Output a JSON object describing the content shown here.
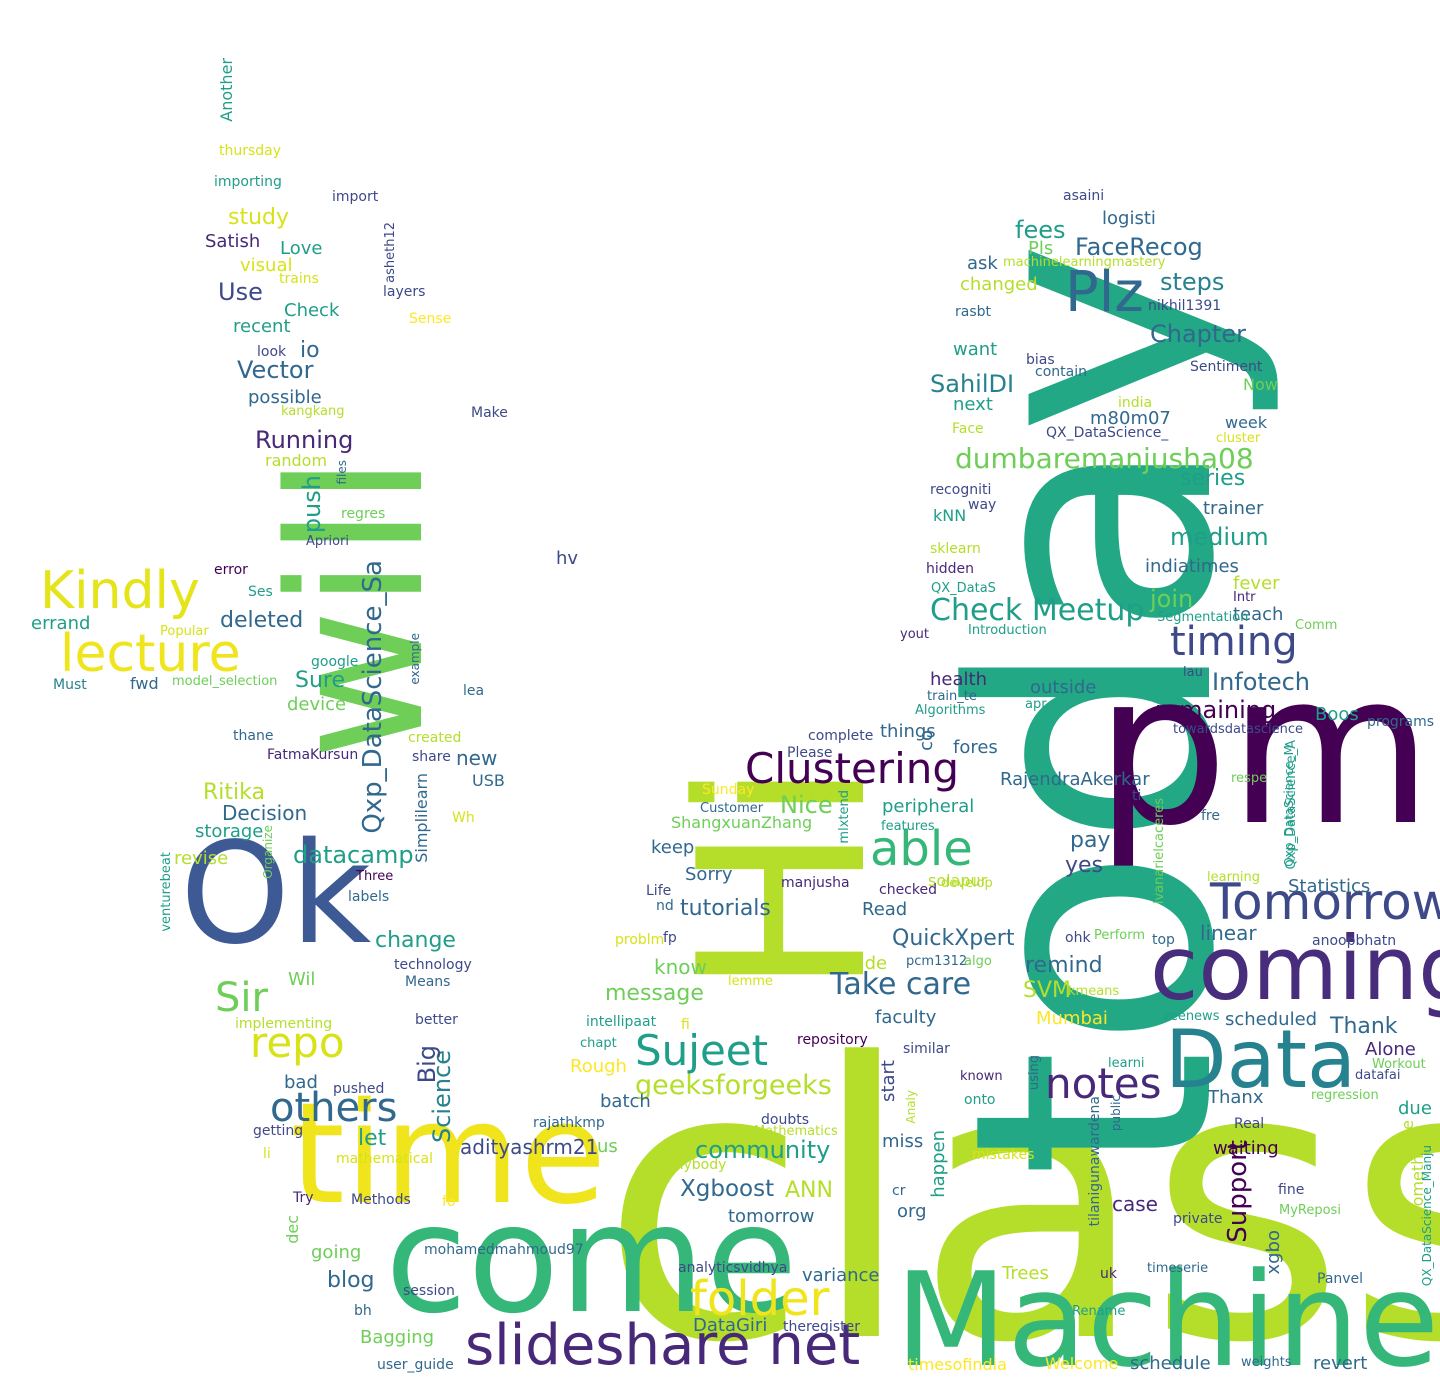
{
  "palette": {
    "c1": "#440154",
    "c2": "#482878",
    "c3": "#3e4989",
    "c4": "#31688e",
    "c5": "#26828e",
    "c6": "#1f9e89",
    "c7": "#35b779",
    "c8": "#6ece58",
    "c9": "#b5de2b",
    "c10": "#fde725"
  },
  "words": [
    {
      "text": "class",
      "color": "#b5de2b"
    },
    {
      "text": "today",
      "color": "#22a884"
    },
    {
      "text": "pm",
      "color": "#440154"
    },
    {
      "text": "come",
      "color": "#35b779"
    },
    {
      "text": "time",
      "color": "#f0e51c"
    },
    {
      "text": "Hi",
      "color": "#b5de2b"
    },
    {
      "text": "Machine",
      "color": "#35b779"
    },
    {
      "text": "will",
      "color": "#6ece58"
    },
    {
      "text": "Ok",
      "color": "#3e5a95"
    },
    {
      "text": "coming",
      "color": "#472d7b"
    },
    {
      "text": "Data",
      "color": "#26828e"
    },
    {
      "text": "slideshare net",
      "color": "#482878"
    },
    {
      "text": "Plz",
      "color": "#31688e"
    },
    {
      "text": "Tomorrow",
      "color": "#3e4989"
    },
    {
      "text": "able",
      "color": "#35b779"
    },
    {
      "text": "Kindly",
      "color": "#e5e419"
    },
    {
      "text": "lecture",
      "color": "#f0e51c"
    },
    {
      "text": "notes",
      "color": "#482878"
    },
    {
      "text": "Clustering",
      "color": "#440154"
    },
    {
      "text": "Sujeet",
      "color": "#1f9e89"
    },
    {
      "text": "others",
      "color": "#31688e"
    },
    {
      "text": "repo",
      "color": "#d8e219"
    },
    {
      "text": "folder",
      "color": "#f0e51c"
    },
    {
      "text": "timing",
      "color": "#3e4989"
    },
    {
      "text": "Sir",
      "color": "#6ece58"
    },
    {
      "text": "Check Meetup",
      "color": "#1f9e89"
    },
    {
      "text": "Take care",
      "color": "#31688e"
    },
    {
      "text": "dumbaremanjusha08",
      "color": "#6ece58"
    },
    {
      "text": "Qxp_DataScience_Sa",
      "color": "#31688e"
    },
    {
      "text": "geeksforgeeks",
      "color": "#b5de2b"
    },
    {
      "text": "Support",
      "color": "#440154"
    },
    {
      "text": "Xgboost",
      "color": "#31688e"
    },
    {
      "text": "SahilDI",
      "color": "#26828e"
    },
    {
      "text": "FaceRecog",
      "color": "#31688e"
    },
    {
      "text": "Chapter",
      "color": "#31688e"
    },
    {
      "text": "steps",
      "color": "#26828e"
    },
    {
      "text": "fees",
      "color": "#1f9e89"
    },
    {
      "text": "medium",
      "color": "#1f9e89"
    },
    {
      "text": "join",
      "color": "#6ece58"
    },
    {
      "text": "Infotech",
      "color": "#31688e"
    },
    {
      "text": "remaining",
      "color": "#440154"
    },
    {
      "text": "community",
      "color": "#1f9e89"
    },
    {
      "text": "Running",
      "color": "#482878"
    },
    {
      "text": "Vector",
      "color": "#31688e"
    },
    {
      "text": "push",
      "color": "#1f9e89"
    },
    {
      "text": "Science",
      "color": "#26828e"
    },
    {
      "text": "Big",
      "color": "#3e4989"
    },
    {
      "text": "datacamp",
      "color": "#1f9e89"
    },
    {
      "text": "Use",
      "color": "#3e4989"
    },
    {
      "text": "study",
      "color": "#d8e219"
    },
    {
      "text": "deleted",
      "color": "#31688e"
    },
    {
      "text": "tutorials",
      "color": "#31688e"
    },
    {
      "text": "Nice",
      "color": "#6ece58"
    },
    {
      "text": "QuickXpert",
      "color": "#31688e"
    },
    {
      "text": "change",
      "color": "#1f9e89"
    },
    {
      "text": "message",
      "color": "#6ece58"
    },
    {
      "text": "remind",
      "color": "#31688e"
    },
    {
      "text": "SVM",
      "color": "#b5de2b"
    },
    {
      "text": "ANN",
      "color": "#b5de2b"
    },
    {
      "text": "pay",
      "color": "#31688e"
    },
    {
      "text": "yes",
      "color": "#3e4989"
    },
    {
      "text": "linear",
      "color": "#31688e"
    },
    {
      "text": "series",
      "color": "#1f9e89"
    },
    {
      "text": "Thank",
      "color": "#31688e"
    },
    {
      "text": "Ritika",
      "color": "#b5de2b"
    },
    {
      "text": "Decision",
      "color": "#31688e"
    },
    {
      "text": "adityashrm21",
      "color": "#3e4989"
    },
    {
      "text": "blog",
      "color": "#31688e"
    },
    {
      "text": "let",
      "color": "#1f9e89"
    },
    {
      "text": "new",
      "color": "#31688e"
    },
    {
      "text": "Sure",
      "color": "#1f9e89"
    },
    {
      "text": "io",
      "color": "#31688e"
    },
    {
      "text": "fores",
      "color": "#31688e"
    },
    {
      "text": "peripheral",
      "color": "#1f9e89"
    },
    {
      "text": "RajendraAkerkar",
      "color": "#31688e"
    },
    {
      "text": "Statistics",
      "color": "#31688e"
    },
    {
      "text": "happen",
      "color": "#1f9e89"
    },
    {
      "text": "start",
      "color": "#3e4989"
    },
    {
      "text": "co",
      "color": "#31688e"
    },
    {
      "text": "faculty",
      "color": "#31688e"
    },
    {
      "text": "org",
      "color": "#31688e"
    },
    {
      "text": "case",
      "color": "#482878"
    },
    {
      "text": "waiting",
      "color": "#440154"
    },
    {
      "text": "late",
      "color": "#b5de2b"
    },
    {
      "text": "something",
      "color": "#b5de2b"
    },
    {
      "text": "xgbo",
      "color": "#31688e"
    },
    {
      "text": "Trees",
      "color": "#b5de2b"
    },
    {
      "text": "variance",
      "color": "#31688e"
    },
    {
      "text": "DataGiri",
      "color": "#31688e"
    },
    {
      "text": "tomorrow",
      "color": "#31688e"
    },
    {
      "text": "going",
      "color": "#6ece58"
    },
    {
      "text": "Bagging",
      "color": "#6ece58"
    },
    {
      "text": "know",
      "color": "#6ece58"
    },
    {
      "text": "keep",
      "color": "#31688e"
    },
    {
      "text": "Sorry",
      "color": "#31688e"
    },
    {
      "text": "Read",
      "color": "#31688e"
    },
    {
      "text": "Donifide",
      "color": "#b5de2b"
    },
    {
      "text": "Mumbai",
      "color": "#fde725"
    },
    {
      "text": "schedule",
      "color": "#31688e"
    },
    {
      "text": "revert",
      "color": "#31688e"
    },
    {
      "text": "Welcome",
      "color": "#fde725"
    },
    {
      "text": "timesofindia",
      "color": "#fde725"
    },
    {
      "text": "batch",
      "color": "#31688e"
    },
    {
      "text": "Rough",
      "color": "#fde725"
    },
    {
      "text": "us",
      "color": "#6ece58"
    },
    {
      "text": "miss",
      "color": "#31688e"
    },
    {
      "text": "health",
      "color": "#482878"
    },
    {
      "text": "outside",
      "color": "#31688e"
    },
    {
      "text": "things",
      "color": "#31688e"
    },
    {
      "text": "fever",
      "color": "#b5de2b"
    },
    {
      "text": "teach",
      "color": "#31688e"
    },
    {
      "text": "indiatimes",
      "color": "#31688e"
    },
    {
      "text": "trainer",
      "color": "#31688e"
    },
    {
      "text": "Boos",
      "color": "#1f9e89"
    },
    {
      "text": "Thanx",
      "color": "#31688e"
    },
    {
      "text": "due",
      "color": "#1f9e89"
    },
    {
      "text": "Alone",
      "color": "#482878"
    },
    {
      "text": "scheduled",
      "color": "#31688e"
    },
    {
      "text": "kNN",
      "color": "#1f9e89"
    },
    {
      "text": "next",
      "color": "#1f9e89"
    },
    {
      "text": "want",
      "color": "#1f9e89"
    },
    {
      "text": "changed",
      "color": "#b5de2b"
    },
    {
      "text": "ask",
      "color": "#31688e"
    },
    {
      "text": "Pls",
      "color": "#6ece58"
    },
    {
      "text": "logisti",
      "color": "#31688e"
    },
    {
      "text": "m80m07",
      "color": "#31688e"
    },
    {
      "text": "week",
      "color": "#31688e"
    },
    {
      "text": "Now",
      "color": "#6ece58"
    },
    {
      "text": "Satish",
      "color": "#482878"
    },
    {
      "text": "Love",
      "color": "#1f9e89"
    },
    {
      "text": "visual",
      "color": "#d8e219"
    },
    {
      "text": "Check",
      "color": "#1f9e89"
    },
    {
      "text": "recent",
      "color": "#1f9e89"
    },
    {
      "text": "possible",
      "color": "#31688e"
    },
    {
      "text": "random",
      "color": "#b5de2b"
    },
    {
      "text": "device",
      "color": "#6ece58"
    },
    {
      "text": "fwd",
      "color": "#31688e"
    },
    {
      "text": "storage",
      "color": "#1f9e89"
    },
    {
      "text": "revise",
      "color": "#b5de2b"
    },
    {
      "text": "USB",
      "color": "#31688e"
    },
    {
      "text": "Simplilearn",
      "color": "#31688e"
    },
    {
      "text": "Wil",
      "color": "#6ece58"
    },
    {
      "text": "bad",
      "color": "#31688e"
    },
    {
      "text": "dec",
      "color": "#6ece58"
    },
    {
      "text": "hv",
      "color": "#3e4989"
    },
    {
      "text": "ShangxuanZhang",
      "color": "#6ece58"
    },
    {
      "text": "solapur",
      "color": "#b5de2b"
    },
    {
      "text": "Another",
      "color": "#1f9e89"
    },
    {
      "text": "thursday",
      "color": "#d8e219"
    },
    {
      "text": "importing",
      "color": "#1f9e89"
    },
    {
      "text": "import",
      "color": "#3e4989"
    },
    {
      "text": "asheth12",
      "color": "#3e4989"
    },
    {
      "text": "layers",
      "color": "#3e4989"
    },
    {
      "text": "trains",
      "color": "#d8e219"
    },
    {
      "text": "Sense",
      "color": "#fde725"
    },
    {
      "text": "look",
      "color": "#3e4989"
    },
    {
      "text": "kangkang",
      "color": "#b5de2b"
    },
    {
      "text": "Make",
      "color": "#3e4989"
    },
    {
      "text": "files",
      "color": "#31688e"
    },
    {
      "text": "regres",
      "color": "#6ece58"
    },
    {
      "text": "Apriori",
      "color": "#3e4989"
    },
    {
      "text": "error",
      "color": "#440154"
    },
    {
      "text": "Ses",
      "color": "#1f9e89"
    },
    {
      "text": "errand",
      "color": "#1f9e89"
    },
    {
      "text": "Popular",
      "color": "#d8e219"
    },
    {
      "text": "google",
      "color": "#1f9e89"
    },
    {
      "text": "example",
      "color": "#31688e"
    },
    {
      "text": "Must",
      "color": "#26828e"
    },
    {
      "text": "model_selection",
      "color": "#6ece58"
    },
    {
      "text": "lea",
      "color": "#31688e"
    },
    {
      "text": "thane",
      "color": "#31688e"
    },
    {
      "text": "created",
      "color": "#b5de2b"
    },
    {
      "text": "FatmaKursun",
      "color": "#482878"
    },
    {
      "text": "share",
      "color": "#3e4989"
    },
    {
      "text": "Wh",
      "color": "#d8e219"
    },
    {
      "text": "Organize",
      "color": "#6ece58"
    },
    {
      "text": "Three",
      "color": "#440154"
    },
    {
      "text": "labels",
      "color": "#31688e"
    },
    {
      "text": "venturebeat",
      "color": "#1f9e89"
    },
    {
      "text": "technology",
      "color": "#3e4989"
    },
    {
      "text": "Means",
      "color": "#31688e"
    },
    {
      "text": "implementing",
      "color": "#b5de2b"
    },
    {
      "text": "better",
      "color": "#3e4989"
    },
    {
      "text": "pushed",
      "color": "#3e4989"
    },
    {
      "text": "getting",
      "color": "#3e4989"
    },
    {
      "text": "li",
      "color": "#d8e219"
    },
    {
      "text": "mathematical",
      "color": "#d8e219"
    },
    {
      "text": "Try",
      "color": "#482878"
    },
    {
      "text": "Methods",
      "color": "#3e4989"
    },
    {
      "text": "fo",
      "color": "#fde725"
    },
    {
      "text": "mohamedmahmoud97",
      "color": "#31688e"
    },
    {
      "text": "session",
      "color": "#3e4989"
    },
    {
      "text": "bh",
      "color": "#31688e"
    },
    {
      "text": "user_guide",
      "color": "#31688e"
    },
    {
      "text": "rajathkmp",
      "color": "#31688e"
    },
    {
      "text": "asaini",
      "color": "#3e4989"
    },
    {
      "text": "machinelearningmastery",
      "color": "#b5de2b"
    },
    {
      "text": "nikhil1391",
      "color": "#3e4989"
    },
    {
      "text": "rasbt",
      "color": "#31688e"
    },
    {
      "text": "bias",
      "color": "#3e4989"
    },
    {
      "text": "contain",
      "color": "#31688e"
    },
    {
      "text": "Sentiment",
      "color": "#3e4989"
    },
    {
      "text": "india",
      "color": "#b5de2b"
    },
    {
      "text": "Face",
      "color": "#b5de2b"
    },
    {
      "text": "QX_DataScience_",
      "color": "#3e4989"
    },
    {
      "text": "cluster",
      "color": "#d8e219"
    },
    {
      "text": "recogniti",
      "color": "#3e4989"
    },
    {
      "text": "way",
      "color": "#3e4989"
    },
    {
      "text": "sklearn",
      "color": "#b5de2b"
    },
    {
      "text": "hidden",
      "color": "#482878"
    },
    {
      "text": "QX_DataS",
      "color": "#1f9e89"
    },
    {
      "text": "Intr",
      "color": "#482878"
    },
    {
      "text": "Segmentation",
      "color": "#1f9e89"
    },
    {
      "text": "Introduction",
      "color": "#1f9e89"
    },
    {
      "text": "Comm",
      "color": "#6ece58"
    },
    {
      "text": "yout",
      "color": "#482878"
    },
    {
      "text": "lau",
      "color": "#3e4989"
    },
    {
      "text": "train_te",
      "color": "#31688e"
    },
    {
      "text": "Algorithms",
      "color": "#1f9e89"
    },
    {
      "text": "apr",
      "color": "#1f9e89"
    },
    {
      "text": "programs",
      "color": "#31688e"
    },
    {
      "text": "complete",
      "color": "#3e4989"
    },
    {
      "text": "towardsdatascience",
      "color": "#3e4989"
    },
    {
      "text": "Qxp_DataScience_A",
      "color": "#1f9e89"
    },
    {
      "text": "Please",
      "color": "#3e4989"
    },
    {
      "text": "respe",
      "color": "#6ece58"
    },
    {
      "text": "Sunday",
      "color": "#fde725"
    },
    {
      "text": "Customer",
      "color": "#31688e"
    },
    {
      "text": "mlxtend",
      "color": "#1f9e89"
    },
    {
      "text": "features",
      "color": "#1f9e89"
    },
    {
      "text": "ti",
      "color": "#3e4989"
    },
    {
      "text": "fre",
      "color": "#31688e"
    },
    {
      "text": "ivanarielcaceres",
      "color": "#6ece58"
    },
    {
      "text": "Qxp_DataScience_M",
      "color": "#1f9e89"
    },
    {
      "text": "Life",
      "color": "#3e4989"
    },
    {
      "text": "manjusha",
      "color": "#482878"
    },
    {
      "text": "checked",
      "color": "#482878"
    },
    {
      "text": "develop",
      "color": "#b5de2b"
    },
    {
      "text": "nd",
      "color": "#31688e"
    },
    {
      "text": "learning",
      "color": "#b5de2b"
    },
    {
      "text": "problm",
      "color": "#d8e219"
    },
    {
      "text": "fp",
      "color": "#3e4989"
    },
    {
      "text": "Perform",
      "color": "#6ece58"
    },
    {
      "text": "top",
      "color": "#31688e"
    },
    {
      "text": "anoopbhatn",
      "color": "#3e4989"
    },
    {
      "text": "ohk",
      "color": "#3e4989"
    },
    {
      "text": "pcm1312",
      "color": "#31688e"
    },
    {
      "text": "algo",
      "color": "#6ece58"
    },
    {
      "text": "lemme",
      "color": "#d8e219"
    },
    {
      "text": "kmeans",
      "color": "#b5de2b"
    },
    {
      "text": "zeenews",
      "color": "#1f9e89"
    },
    {
      "text": "intellipaat",
      "color": "#1f9e89"
    },
    {
      "text": "fi",
      "color": "#d8e219"
    },
    {
      "text": "chapt",
      "color": "#1f9e89"
    },
    {
      "text": "repository",
      "color": "#440154"
    },
    {
      "text": "similar",
      "color": "#3e4989"
    },
    {
      "text": "known",
      "color": "#482878"
    },
    {
      "text": "onto",
      "color": "#1f9e89"
    },
    {
      "text": "using",
      "color": "#31688e"
    },
    {
      "text": "learni",
      "color": "#1f9e89"
    },
    {
      "text": "Workout",
      "color": "#6ece58"
    },
    {
      "text": "datafai",
      "color": "#3e4989"
    },
    {
      "text": "regression",
      "color": "#6ece58"
    },
    {
      "text": "doubts",
      "color": "#3e4989"
    },
    {
      "text": "Mathematics",
      "color": "#b5de2b"
    },
    {
      "text": "Analy",
      "color": "#b5de2b"
    },
    {
      "text": "public",
      "color": "#31688e"
    },
    {
      "text": "Real",
      "color": "#3e4989"
    },
    {
      "text": "Anybody",
      "color": "#b5de2b"
    },
    {
      "text": "mistakes",
      "color": "#d8e219"
    },
    {
      "text": "cr",
      "color": "#31688e"
    },
    {
      "text": "fine",
      "color": "#3e4989"
    },
    {
      "text": "private",
      "color": "#3e4989"
    },
    {
      "text": "MyReposi",
      "color": "#6ece58"
    },
    {
      "text": "tilanigunawardena",
      "color": "#31688e"
    },
    {
      "text": "analyticsvidhya",
      "color": "#3e4989"
    },
    {
      "text": "uk",
      "color": "#482878"
    },
    {
      "text": "timeserie",
      "color": "#31688e"
    },
    {
      "text": "Panvel",
      "color": "#31688e"
    },
    {
      "text": "Rename",
      "color": "#1f9e89"
    },
    {
      "text": "theregister",
      "color": "#3e4989"
    },
    {
      "text": "weights",
      "color": "#31688e"
    },
    {
      "text": "QX_DataScience_Manju",
      "color": "#1f9e89"
    }
  ]
}
